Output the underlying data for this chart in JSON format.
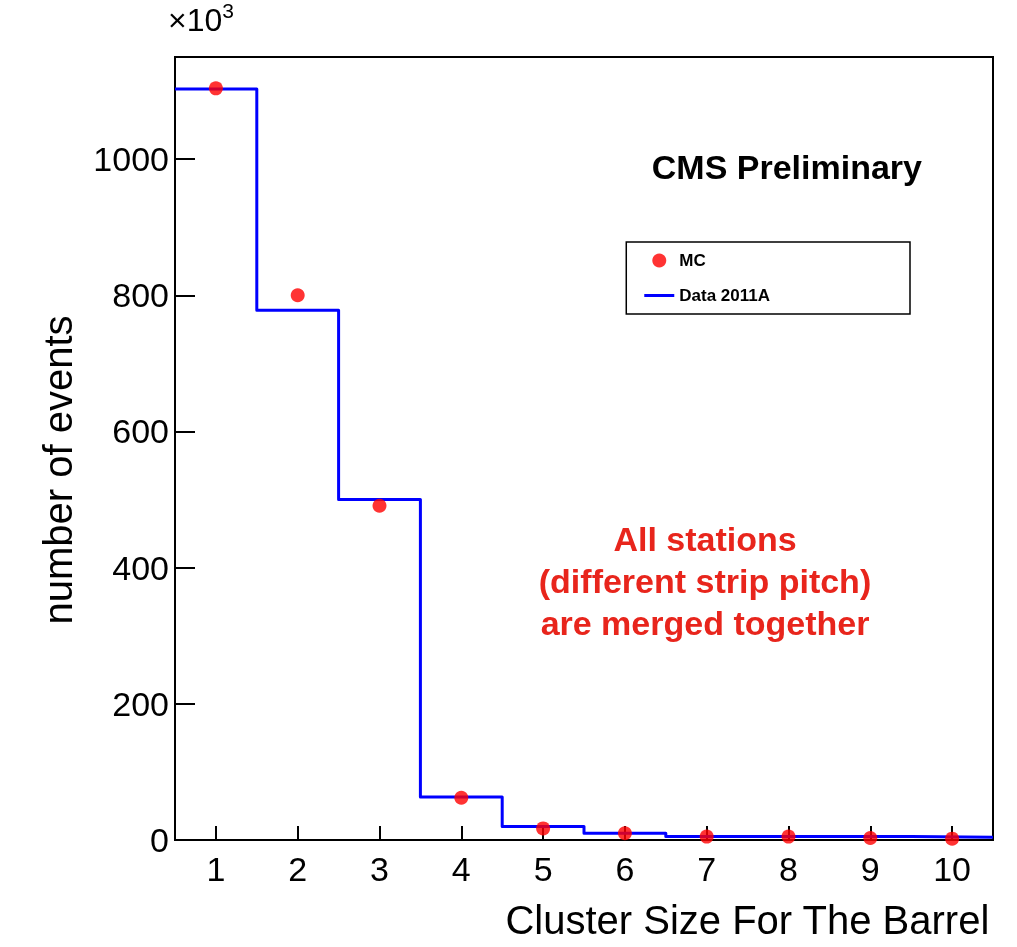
{
  "chart_data": {
    "type": "scatter",
    "xlabel": "Cluster Size For The Barrel",
    "ylabel": "number of events",
    "xlim": [
      0.5,
      10.5
    ],
    "xticks": [
      1,
      2,
      3,
      4,
      5,
      6,
      7,
      8,
      9,
      10
    ],
    "ylim": [
      0,
      1150
    ],
    "yticks": [
      0,
      200,
      400,
      600,
      800,
      1000
    ],
    "series": [
      {
        "name": "MC",
        "color": "#ff0000",
        "marker": "circle",
        "x": [
          1,
          2,
          3,
          4,
          5,
          6,
          7,
          8,
          9,
          10
        ],
        "values": [
          1104,
          800,
          491,
          62,
          17,
          10,
          5,
          5,
          3,
          2
        ]
      },
      {
        "name": "Data 2011A",
        "type": "histogram",
        "color": "#0000ff",
        "bins": [
          0.5,
          1.5,
          2.5,
          3.5,
          4.5,
          5.5,
          6.5,
          7.5,
          8.5,
          9.5,
          10.5
        ],
        "values": [
          1103,
          778,
          500,
          63,
          20,
          10,
          5,
          5,
          5,
          4
        ]
      }
    ],
    "legend": "top right",
    "grid": false,
    "annotations": [
      "×10$^{3}$",
      "CMS Preliminary",
      "All stations\n(different strip pitch)\nare merged together"
    ]
  }
}
